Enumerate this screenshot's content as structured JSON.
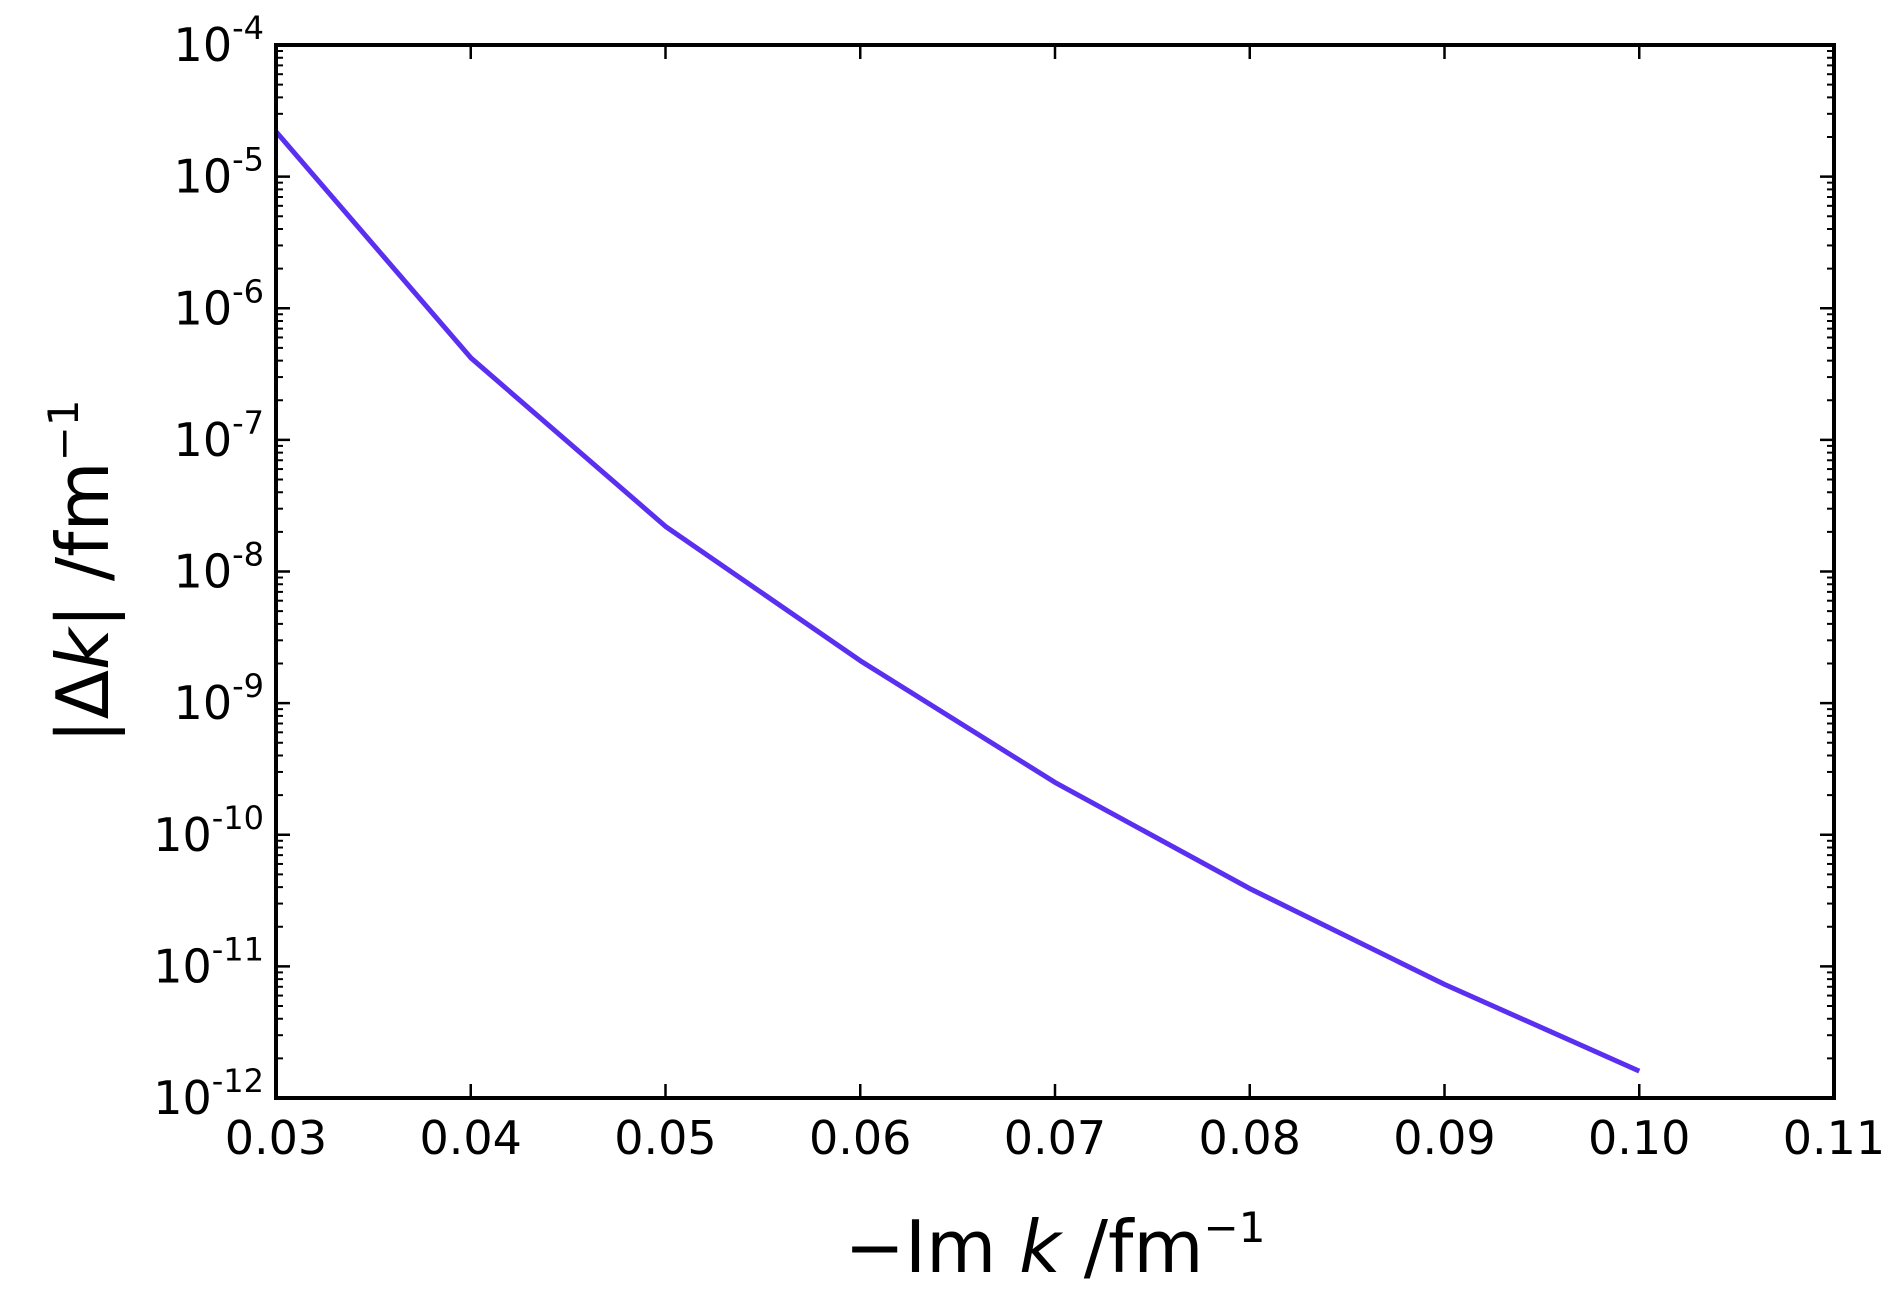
{
  "chart_data": {
    "type": "line",
    "xlabel": {
      "prefix": "−Im ",
      "var": "k",
      "units": " /fm",
      "exp": "−1"
    },
    "ylabel": {
      "prefix": "|Δ",
      "var": "k",
      "suffix": "| /fm",
      "exp": "−1"
    },
    "xlim": [
      0.03,
      0.11
    ],
    "ylim": [
      1e-12,
      0.0001
    ],
    "yscale": "log",
    "grid": false,
    "legend": "none",
    "x_ticks": [
      "0.03",
      "0.04",
      "0.05",
      "0.06",
      "0.07",
      "0.08",
      "0.09",
      "0.10",
      "0.11"
    ],
    "y_ticks": [
      {
        "base": "10",
        "exp": "-4"
      },
      {
        "base": "10",
        "exp": "-5"
      },
      {
        "base": "10",
        "exp": "-6"
      },
      {
        "base": "10",
        "exp": "-7"
      },
      {
        "base": "10",
        "exp": "-8"
      },
      {
        "base": "10",
        "exp": "-9"
      },
      {
        "base": "10",
        "exp": "-10"
      },
      {
        "base": "10",
        "exp": "-11"
      },
      {
        "base": "10",
        "exp": "-12"
      }
    ],
    "series": [
      {
        "color": "#5b2ff0",
        "x": [
          0.03,
          0.04,
          0.05,
          0.06,
          0.07,
          0.08,
          0.09,
          0.1
        ],
        "y": [
          2.2e-05,
          4.2e-07,
          2.2e-08,
          2.1e-09,
          2.5e-10,
          3.9e-11,
          7.3e-12,
          1.6e-12
        ]
      }
    ]
  }
}
